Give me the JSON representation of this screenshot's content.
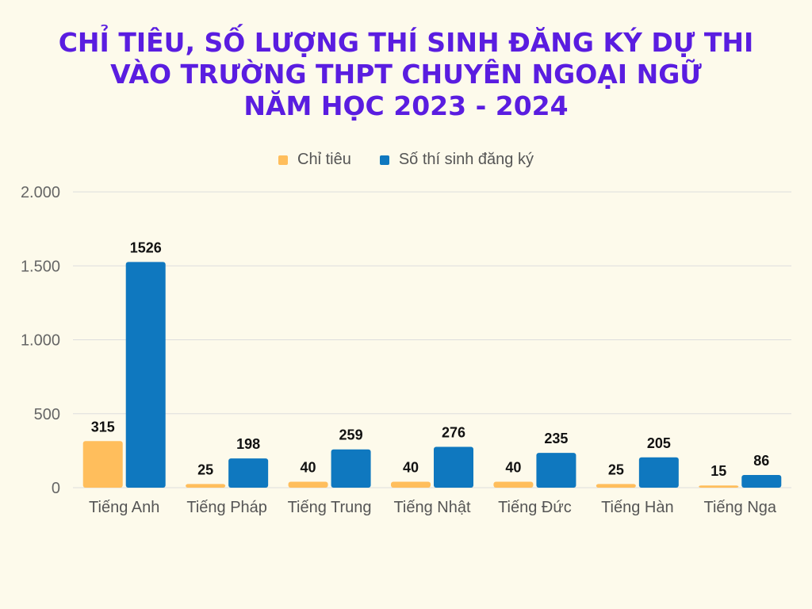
{
  "title_lines": [
    "CHỈ TIÊU, SỐ LƯỢNG THÍ SINH ĐĂNG KÝ DỰ THI",
    "VÀO TRƯỜNG THPT CHUYÊN NGOẠI NGỮ",
    "NĂM HỌC 2023 - 2024"
  ],
  "colors": {
    "background": "#fdfaeb",
    "title": "#5a1de0"
  },
  "chart_data": {
    "type": "bar",
    "categories": [
      "Tiếng Anh",
      "Tiếng Pháp",
      "Tiếng Trung",
      "Tiếng Nhật",
      "Tiếng Đức",
      "Tiếng Hàn",
      "Tiếng Nga"
    ],
    "series": [
      {
        "name": "Chỉ tiêu",
        "color": "#ffbe5c",
        "values": [
          315,
          25,
          40,
          40,
          40,
          25,
          15
        ]
      },
      {
        "name": "Số thí sinh đăng ký",
        "color": "#0f78bf",
        "values": [
          1526,
          198,
          259,
          276,
          235,
          205,
          86
        ]
      }
    ],
    "ylim": [
      0,
      2000
    ],
    "yticks": [
      0,
      500,
      1000,
      1500,
      2000
    ],
    "ytick_labels": [
      "0",
      "500",
      "1.000",
      "1.500",
      "2.000"
    ],
    "grid": true,
    "legend_position": "top-center",
    "data_labels": true
  }
}
